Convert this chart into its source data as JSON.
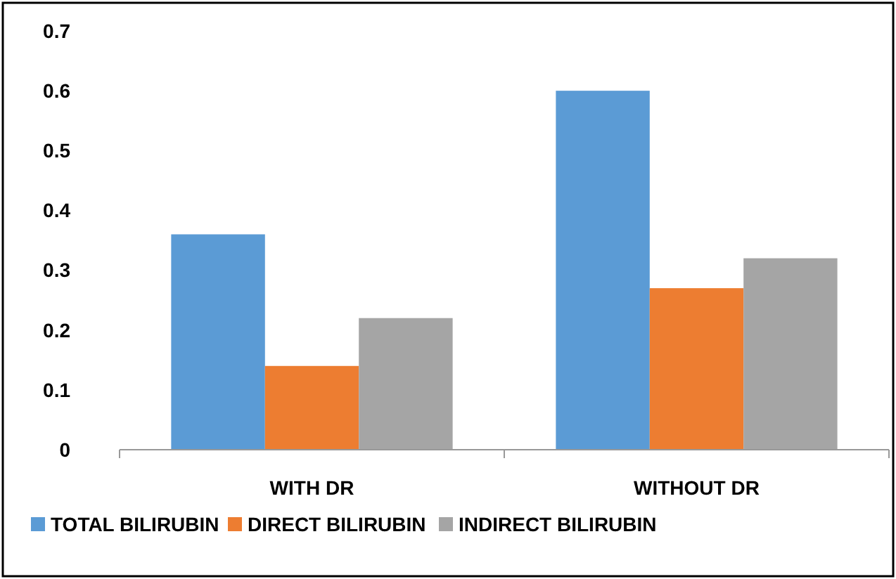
{
  "chart_data": {
    "type": "bar",
    "categories": [
      "WITH DR",
      "WITHOUT DR"
    ],
    "series": [
      {
        "name": "TOTAL BILIRUBIN",
        "color": "#5b9bd5",
        "values": [
          0.36,
          0.6
        ]
      },
      {
        "name": "DIRECT BILIRUBIN",
        "color": "#ed7d31",
        "values": [
          0.14,
          0.27
        ]
      },
      {
        "name": "INDIRECT BILIRUBIN",
        "color": "#a5a5a5",
        "values": [
          0.22,
          0.32
        ]
      }
    ],
    "ylim": [
      0,
      0.7
    ],
    "yticks": [
      0,
      0.1,
      0.2,
      0.3,
      0.4,
      0.5,
      0.6,
      0.7
    ],
    "grid": false,
    "legend": "bottom"
  }
}
